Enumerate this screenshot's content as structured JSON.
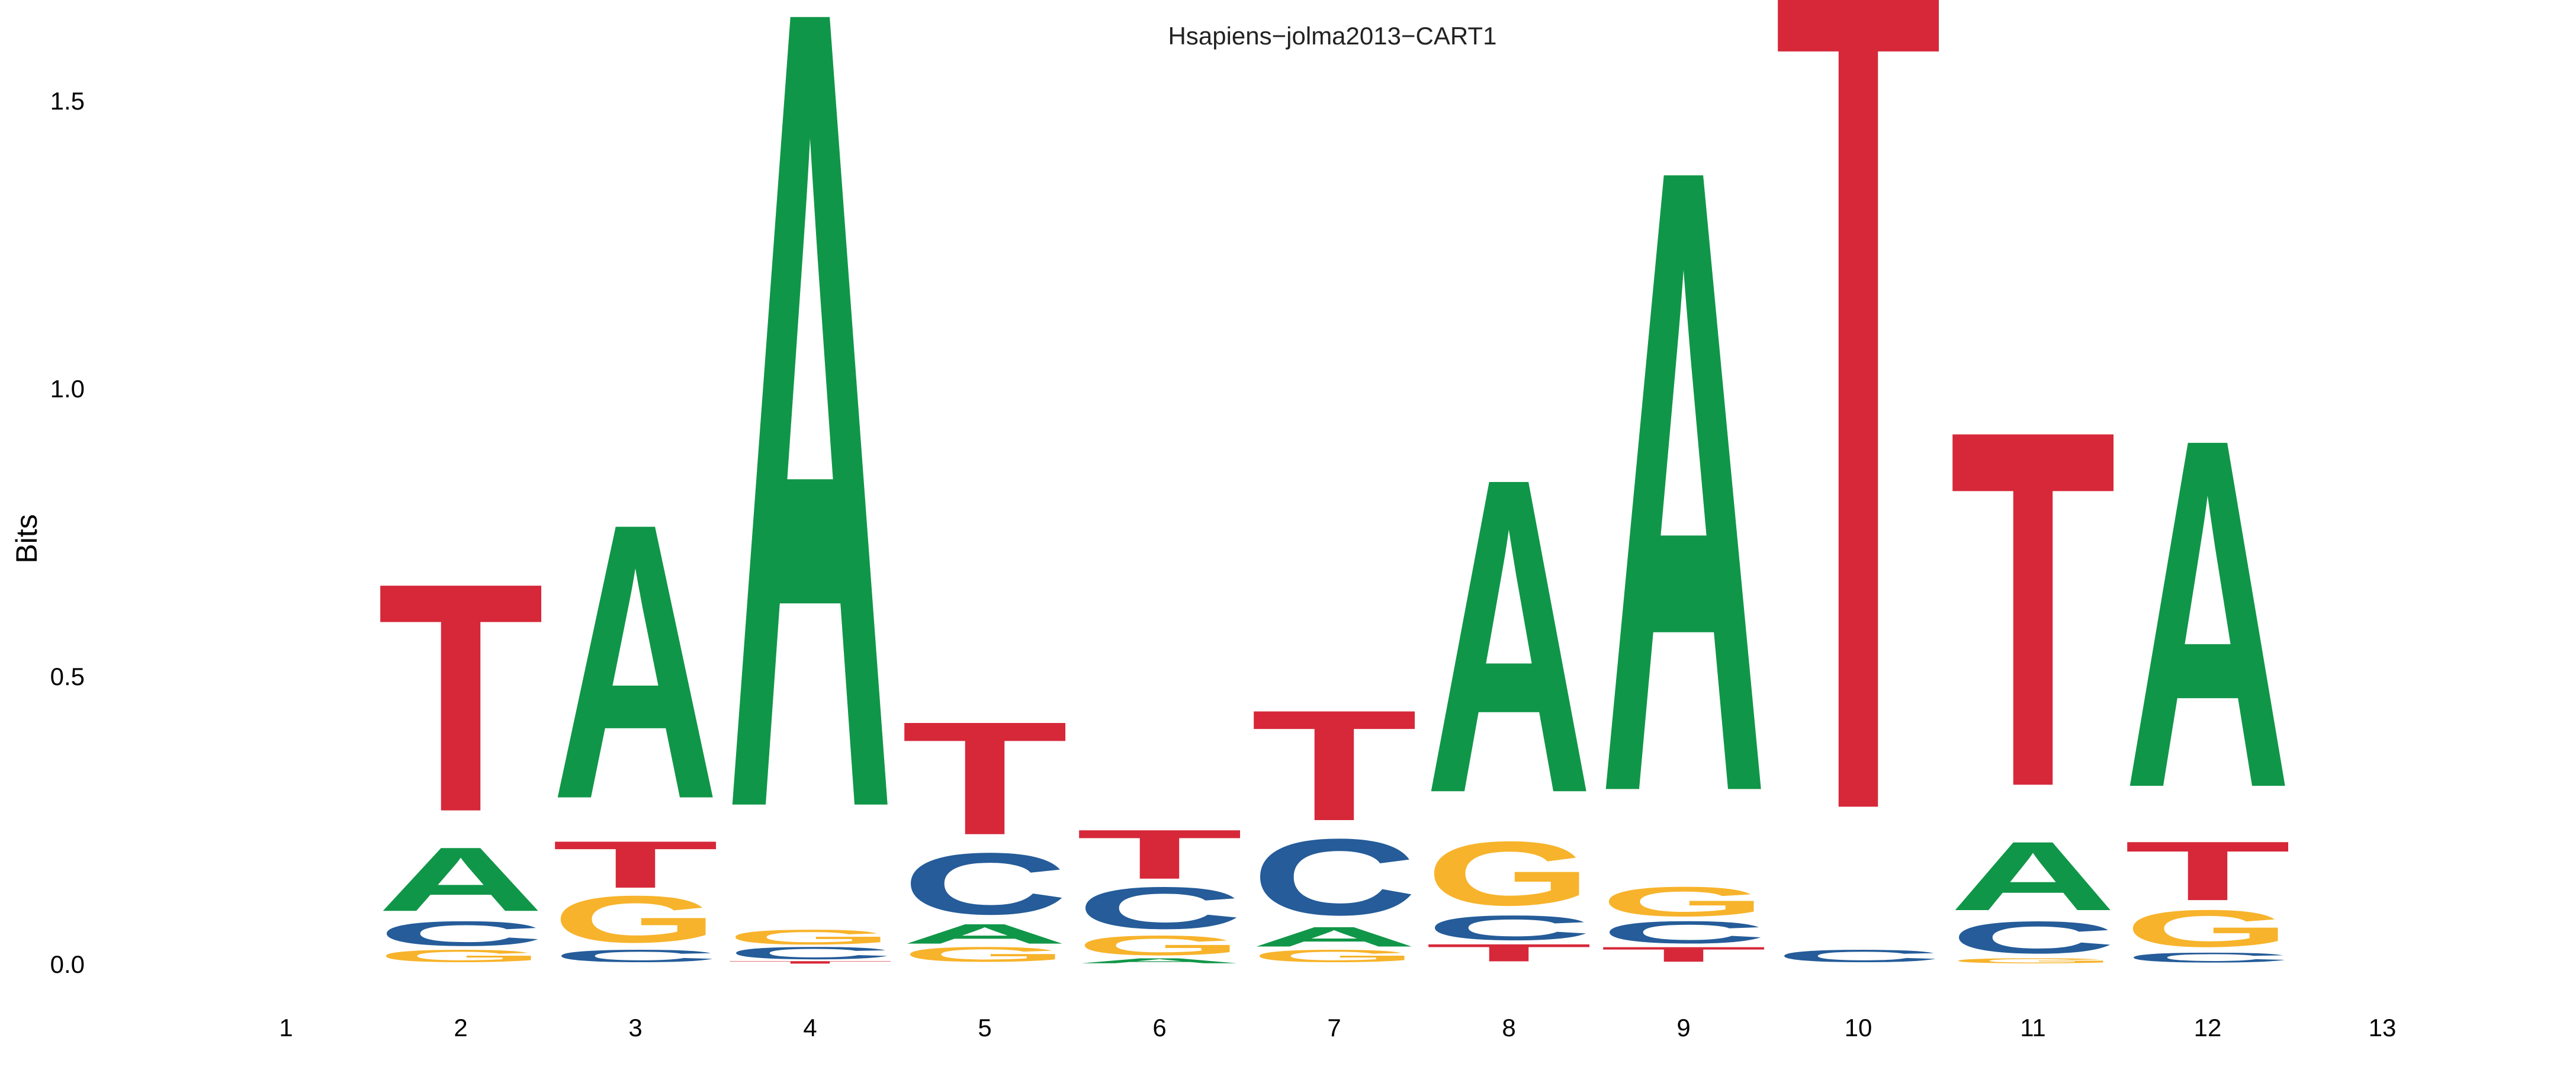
{
  "chart_data": {
    "type": "sequence-logo",
    "title": "Hsapiens−jolma2013−CART1",
    "ylabel": "Bits",
    "xlabel": "",
    "ylim": [
      0,
      1.93
    ],
    "yticks": [
      0.0,
      0.5,
      1.0,
      1.5
    ],
    "ytick_labels": [
      "0.0",
      "0.5",
      "1.0",
      "1.5"
    ],
    "x_tick_labels": [
      "1",
      "2",
      "3",
      "4",
      "5",
      "6",
      "7",
      "8",
      "9",
      "10",
      "11",
      "12",
      "13"
    ],
    "grid": false,
    "legend": "none",
    "colors": {
      "A": "#109648",
      "C": "#255C99",
      "G": "#F7B32B",
      "T": "#D62839"
    },
    "positions": [
      {
        "position": "1",
        "stack": []
      },
      {
        "position": "2",
        "stack": [
          {
            "base": "G",
            "bits": 0.025
          },
          {
            "base": "C",
            "bits": 0.05
          },
          {
            "base": "A",
            "bits": 0.13
          },
          {
            "base": "T",
            "bits": 0.465
          }
        ]
      },
      {
        "position": "3",
        "stack": [
          {
            "base": "C",
            "bits": 0.025
          },
          {
            "base": "G",
            "bits": 0.095
          },
          {
            "base": "T",
            "bits": 0.095
          },
          {
            "base": "A",
            "bits": 0.56
          }
        ]
      },
      {
        "position": "4",
        "stack": [
          {
            "base": "T",
            "bits": 0.005
          },
          {
            "base": "C",
            "bits": 0.025
          },
          {
            "base": "G",
            "bits": 0.03
          },
          {
            "base": "A",
            "bits": 1.63
          }
        ]
      },
      {
        "position": "5",
        "stack": [
          {
            "base": "G",
            "bits": 0.03
          },
          {
            "base": "A",
            "bits": 0.04
          },
          {
            "base": "C",
            "bits": 0.125
          },
          {
            "base": "T",
            "bits": 0.23
          }
        ]
      },
      {
        "position": "6",
        "stack": [
          {
            "base": "A",
            "bits": 0.01
          },
          {
            "base": "G",
            "bits": 0.04
          },
          {
            "base": "C",
            "bits": 0.085
          },
          {
            "base": "T",
            "bits": 0.1
          }
        ]
      },
      {
        "position": "7",
        "stack": [
          {
            "base": "G",
            "bits": 0.025
          },
          {
            "base": "A",
            "bits": 0.04
          },
          {
            "base": "C",
            "bits": 0.155
          },
          {
            "base": "T",
            "bits": 0.225
          }
        ]
      },
      {
        "position": "8",
        "stack": [
          {
            "base": "T",
            "bits": 0.035
          },
          {
            "base": "C",
            "bits": 0.05
          },
          {
            "base": "G",
            "bits": 0.13
          },
          {
            "base": "A",
            "bits": 0.64
          }
        ]
      },
      {
        "position": "9",
        "stack": [
          {
            "base": "T",
            "bits": 0.03
          },
          {
            "base": "C",
            "bits": 0.045
          },
          {
            "base": "G",
            "bits": 0.06
          },
          {
            "base": "A",
            "bits": 1.27
          }
        ]
      },
      {
        "position": "10",
        "stack": [
          {
            "base": "C",
            "bits": 0.025
          },
          {
            "base": "T",
            "bits": 1.865
          }
        ]
      },
      {
        "position": "11",
        "stack": [
          {
            "base": "G",
            "bits": 0.01
          },
          {
            "base": "C",
            "bits": 0.065
          },
          {
            "base": "A",
            "bits": 0.14
          },
          {
            "base": "T",
            "bits": 0.725
          }
        ]
      },
      {
        "position": "12",
        "stack": [
          {
            "base": "C",
            "bits": 0.02
          },
          {
            "base": "G",
            "bits": 0.075
          },
          {
            "base": "T",
            "bits": 0.12
          },
          {
            "base": "A",
            "bits": 0.71
          }
        ]
      },
      {
        "position": "13",
        "stack": []
      }
    ]
  }
}
